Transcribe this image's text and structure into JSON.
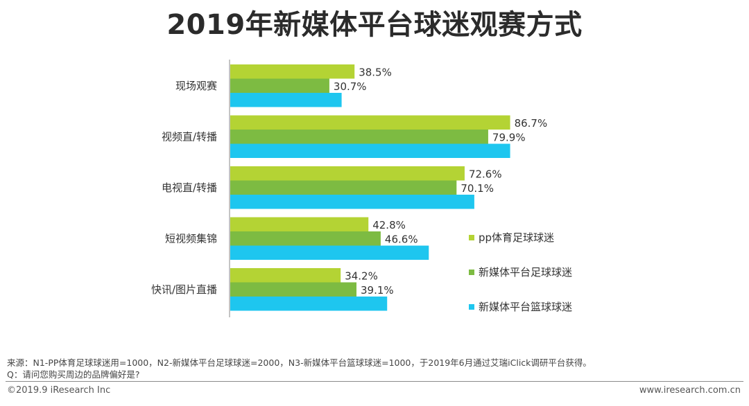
{
  "header": {
    "title": "2019年新媒体平台球迷观赛方式"
  },
  "chart_data": {
    "type": "bar",
    "orientation": "horizontal",
    "title": "2019年新媒体平台球迷观赛方式",
    "categories": [
      "现场观赛",
      "视频直/转播",
      "电视直/转播",
      "短视频集锦",
      "快讯/图片直播"
    ],
    "xlim": [
      0,
      100
    ],
    "grid": false,
    "legend_position": "right",
    "series": [
      {
        "name": "pp体育足球球迷",
        "color": "#b4d334",
        "values": [
          38.5,
          86.7,
          72.6,
          42.8,
          34.2
        ],
        "labels": [
          "38.5%",
          "86.7%",
          "72.6%",
          "42.8%",
          "34.2%"
        ]
      },
      {
        "name": "新媒体平台足球球迷",
        "color": "#7dbb42",
        "values": [
          30.7,
          79.9,
          70.1,
          46.6,
          39.1
        ],
        "labels": [
          "30.7%",
          "79.9%",
          "70.1%",
          "46.6%",
          "39.1%"
        ]
      },
      {
        "name": "新媒体平台篮球球迷",
        "color": "#1ec6ef",
        "values": [
          34.5,
          86.7,
          75.6,
          61.5,
          48.6
        ],
        "labels": null
      }
    ]
  },
  "footer": {
    "source": "来源：N1-PP体育足球球迷用=1000，N2-新媒体平台足球球迷=2000，N3-新媒体平台篮球球迷=1000，于2019年6月通过艾瑞iClick调研平台获得。",
    "question": "Q：请问您购买周边的品牌偏好是?",
    "copyright": "©2019.9 iResearch Inc",
    "website": "www.iresearch.com.cn"
  }
}
